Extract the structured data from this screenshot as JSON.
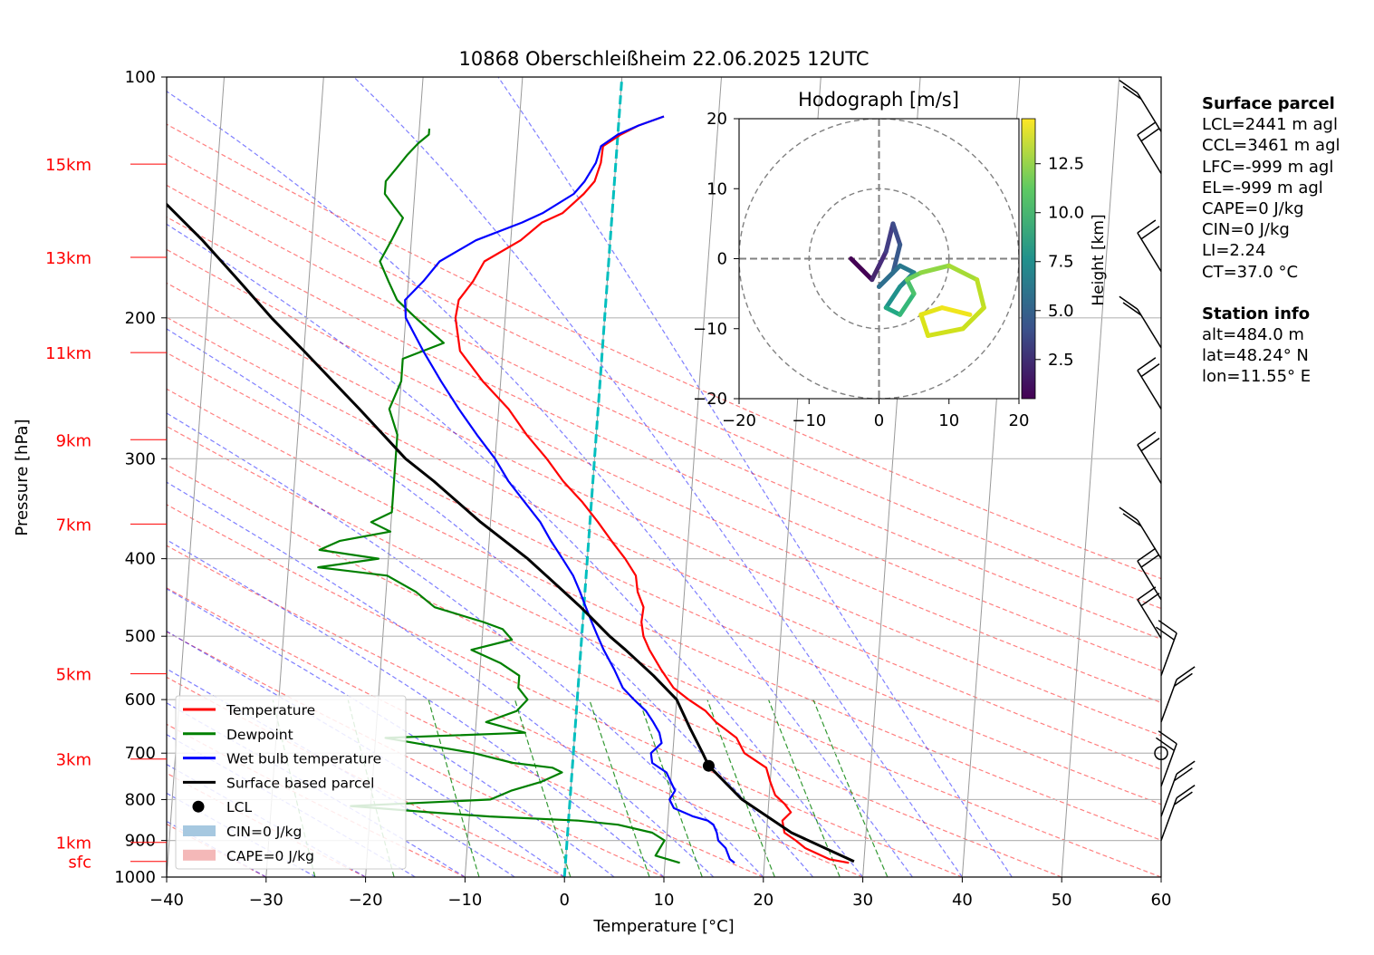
{
  "title": "10868 Oberschleißheim 22.06.2025 12UTC",
  "chart_data": {
    "type": "line",
    "title": "10868 Oberschleißheim 22.06.2025 12UTC",
    "xlabel": "Temperature [°C]",
    "ylabel": "Pressure [hPa]",
    "xlim": [
      -40,
      60
    ],
    "ylim": [
      1000,
      100
    ],
    "y_scale": "log",
    "grid": true,
    "x_ticks": [
      "−40",
      "−30",
      "−20",
      "−10",
      "0",
      "10",
      "20",
      "30",
      "40",
      "50",
      "60"
    ],
    "x_tick_values": [
      -40,
      -30,
      -20,
      -10,
      0,
      10,
      20,
      30,
      40,
      50,
      60
    ],
    "y_ticks": [
      "100",
      "200",
      "300",
      "400",
      "500",
      "600",
      "700",
      "800",
      "900",
      "1000"
    ],
    "y_tick_values": [
      100,
      200,
      300,
      400,
      500,
      600,
      700,
      800,
      900,
      1000
    ],
    "height_markers": [
      {
        "label": "15km",
        "p": 128.5
      },
      {
        "label": "13km",
        "p": 168.0
      },
      {
        "label": "11km",
        "p": 221.0
      },
      {
        "label": "9km",
        "p": 284.0
      },
      {
        "label": "7km",
        "p": 362.0
      },
      {
        "label": "5km",
        "p": 557.0
      },
      {
        "label": "3km",
        "p": 712.0
      },
      {
        "label": "1km",
        "p": 905.0
      },
      {
        "label": "sfc",
        "p": 956.0
      }
    ],
    "legend_position": "lower-left",
    "legend": [
      {
        "label": "Temperature",
        "color": "#ff0000",
        "kind": "line"
      },
      {
        "label": "Dewpoint",
        "color": "#008000",
        "kind": "line"
      },
      {
        "label": "Wet bulb temperature",
        "color": "#0000ff",
        "kind": "line"
      },
      {
        "label": "Surface based parcel",
        "color": "#000000",
        "kind": "line"
      },
      {
        "label": "LCL",
        "color": "#000000",
        "kind": "marker"
      },
      {
        "label": "CIN=0 J/kg",
        "color": "#a6c8e0",
        "kind": "patch"
      },
      {
        "label": "CAPE=0 J/kg",
        "color": "#f4b8b8",
        "kind": "patch"
      }
    ],
    "series": [
      {
        "name": "Temperature",
        "color": "#ff0000",
        "points": [
          [
            960,
            28.5
          ],
          [
            950,
            26.5
          ],
          [
            920,
            24
          ],
          [
            900,
            23
          ],
          [
            880,
            21.8
          ],
          [
            850,
            21.5
          ],
          [
            830,
            22.3
          ],
          [
            810,
            21.6
          ],
          [
            790,
            20.6
          ],
          [
            760,
            20
          ],
          [
            730,
            19.5
          ],
          [
            700,
            17.2
          ],
          [
            670,
            16.3
          ],
          [
            640,
            14.1
          ],
          [
            620,
            13
          ],
          [
            600,
            11.2
          ],
          [
            580,
            9.6
          ],
          [
            550,
            8.2
          ],
          [
            520,
            6.9
          ],
          [
            500,
            6.2
          ],
          [
            480,
            5.9
          ],
          [
            460,
            6
          ],
          [
            440,
            5.3
          ],
          [
            420,
            5
          ],
          [
            400,
            3.8
          ],
          [
            380,
            2.3
          ],
          [
            360,
            0.8
          ],
          [
            340,
            -0.9
          ],
          [
            320,
            -3
          ],
          [
            300,
            -4.8
          ],
          [
            280,
            -7
          ],
          [
            260,
            -9
          ],
          [
            240,
            -11.8
          ],
          [
            220,
            -14.3
          ],
          [
            200,
            -15
          ],
          [
            190,
            -14.8
          ],
          [
            180,
            -13.5
          ],
          [
            170,
            -12.5
          ],
          [
            160,
            -9
          ],
          [
            152,
            -7
          ],
          [
            148,
            -5
          ],
          [
            140,
            -3
          ],
          [
            135,
            -2
          ],
          [
            128,
            -1.5
          ],
          [
            122,
            -1.4
          ],
          [
            118,
            0.3
          ],
          [
            115,
            2
          ],
          [
            112,
            4.5
          ]
        ]
      },
      {
        "name": "Dewpoint",
        "color": "#008000",
        "points": [
          [
            960,
            11.5
          ],
          [
            940,
            9
          ],
          [
            900,
            9.8
          ],
          [
            880,
            8.5
          ],
          [
            860,
            5
          ],
          [
            850,
            1
          ],
          [
            840,
            -8
          ],
          [
            830,
            -14
          ],
          [
            815,
            -22
          ],
          [
            800,
            -8
          ],
          [
            780,
            -6
          ],
          [
            760,
            -3
          ],
          [
            740,
            -1
          ],
          [
            730,
            -2
          ],
          [
            720,
            -6
          ],
          [
            700,
            -10
          ],
          [
            680,
            -16
          ],
          [
            670,
            -19
          ],
          [
            660,
            -5
          ],
          [
            640,
            -9
          ],
          [
            620,
            -6
          ],
          [
            600,
            -5
          ],
          [
            580,
            -6
          ],
          [
            560,
            -6
          ],
          [
            540,
            -8
          ],
          [
            520,
            -11
          ],
          [
            505,
            -7
          ],
          [
            490,
            -8
          ],
          [
            480,
            -10
          ],
          [
            460,
            -15
          ],
          [
            440,
            -17
          ],
          [
            420,
            -20
          ],
          [
            410,
            -27
          ],
          [
            400,
            -21
          ],
          [
            390,
            -27
          ],
          [
            380,
            -25
          ],
          [
            370,
            -20
          ],
          [
            360,
            -22
          ],
          [
            350,
            -20
          ],
          [
            340,
            -20
          ],
          [
            320,
            -20
          ],
          [
            300,
            -20
          ],
          [
            280,
            -20
          ],
          [
            260,
            -21
          ],
          [
            240,
            -20
          ],
          [
            225,
            -20
          ],
          [
            215,
            -16
          ],
          [
            210,
            -17
          ],
          [
            200,
            -19
          ],
          [
            190,
            -21
          ],
          [
            180,
            -22
          ],
          [
            170,
            -23
          ],
          [
            160,
            -22
          ],
          [
            150,
            -21
          ],
          [
            145,
            -22
          ],
          [
            140,
            -23
          ],
          [
            135,
            -23
          ],
          [
            130,
            -22
          ],
          [
            125,
            -21
          ],
          [
            121,
            -20
          ],
          [
            118,
            -19
          ],
          [
            116,
            -19
          ]
        ]
      },
      {
        "name": "Wet bulb temperature",
        "color": "#0000ff",
        "points": [
          [
            960,
            17
          ],
          [
            950,
            16.5
          ],
          [
            920,
            16
          ],
          [
            900,
            15.2
          ],
          [
            880,
            15
          ],
          [
            860,
            14.6
          ],
          [
            850,
            14
          ],
          [
            840,
            12.5
          ],
          [
            820,
            10.5
          ],
          [
            800,
            10
          ],
          [
            780,
            10.5
          ],
          [
            760,
            10
          ],
          [
            740,
            9.5
          ],
          [
            720,
            8
          ],
          [
            700,
            7.8
          ],
          [
            680,
            8.8
          ],
          [
            660,
            8.5
          ],
          [
            640,
            7.8
          ],
          [
            620,
            7
          ],
          [
            600,
            5.7
          ],
          [
            580,
            4.5
          ],
          [
            550,
            3.5
          ],
          [
            520,
            2.3
          ],
          [
            500,
            1.6
          ],
          [
            480,
            0.9
          ],
          [
            460,
            0.2
          ],
          [
            440,
            -0.5
          ],
          [
            420,
            -1.3
          ],
          [
            400,
            -2.5
          ],
          [
            380,
            -3.8
          ],
          [
            360,
            -5
          ],
          [
            340,
            -6.7
          ],
          [
            320,
            -8.5
          ],
          [
            300,
            -10
          ],
          [
            280,
            -12
          ],
          [
            260,
            -14
          ],
          [
            240,
            -16
          ],
          [
            220,
            -18
          ],
          [
            200,
            -20
          ],
          [
            190,
            -20.2
          ],
          [
            180,
            -18.5
          ],
          [
            170,
            -17
          ],
          [
            160,
            -13.5
          ],
          [
            152,
            -9
          ],
          [
            148,
            -7
          ],
          [
            140,
            -4
          ],
          [
            135,
            -3
          ],
          [
            128,
            -2
          ],
          [
            122,
            -1.6
          ],
          [
            118,
            0
          ],
          [
            115,
            2
          ],
          [
            112,
            4.5
          ]
        ]
      },
      {
        "name": "Surface based parcel",
        "color": "#000000",
        "points": [
          [
            956,
            29
          ],
          [
            880,
            22.5
          ],
          [
            800,
            17.3
          ],
          [
            726,
            13.7
          ],
          [
            700,
            13
          ],
          [
            650,
            11.5
          ],
          [
            600,
            10
          ],
          [
            560,
            7.5
          ],
          [
            520,
            4.5
          ],
          [
            500,
            2.8
          ],
          [
            460,
            -0.3
          ],
          [
            420,
            -4
          ],
          [
            400,
            -6
          ],
          [
            360,
            -11
          ],
          [
            320,
            -16
          ],
          [
            300,
            -19
          ],
          [
            260,
            -24
          ],
          [
            220,
            -30
          ],
          [
            200,
            -33.5
          ],
          [
            180,
            -37
          ],
          [
            160,
            -41
          ],
          [
            140,
            -46
          ],
          [
            120,
            -52
          ],
          [
            114,
            -54
          ]
        ]
      }
    ],
    "lcl": {
      "p": 726,
      "t": 13.7
    },
    "freezing_line": {
      "color": "#00bfbf"
    },
    "wind_barbs_p": [
      117,
      132,
      175,
      218,
      260,
      322,
      400,
      450,
      503,
      560,
      640,
      700,
      770,
      840,
      900
    ],
    "hodograph": {
      "title": "Hodograph [m/s]",
      "xlim": [
        -20,
        20
      ],
      "ylim": [
        -20,
        20
      ],
      "x_ticks": [
        "−20",
        "−10",
        "0",
        "10",
        "20"
      ],
      "y_ticks": [
        "−20",
        "−10",
        "0",
        "10",
        "20"
      ],
      "rings": [
        10,
        20
      ],
      "colorbar_label": "Height [km]",
      "colorbar_ticks": [
        "2.5",
        "5.0",
        "7.5",
        "10.0",
        "12.5"
      ],
      "colorbar_range": [
        0.5,
        14.8
      ]
    }
  },
  "surface_parcel": {
    "heading": "Surface parcel",
    "lines": [
      "LCL=2441 m agl",
      "CCL=3461 m agl",
      "LFC=-999 m agl",
      "EL=-999 m agl",
      "CAPE=0 J/kg",
      "CIN=0 J/kg",
      "LI=2.24",
      "CT=37.0 °C"
    ]
  },
  "station_info": {
    "heading": "Station info",
    "lines": [
      "alt=484.0 m",
      "lat=48.24° N",
      "lon=11.55° E"
    ]
  }
}
